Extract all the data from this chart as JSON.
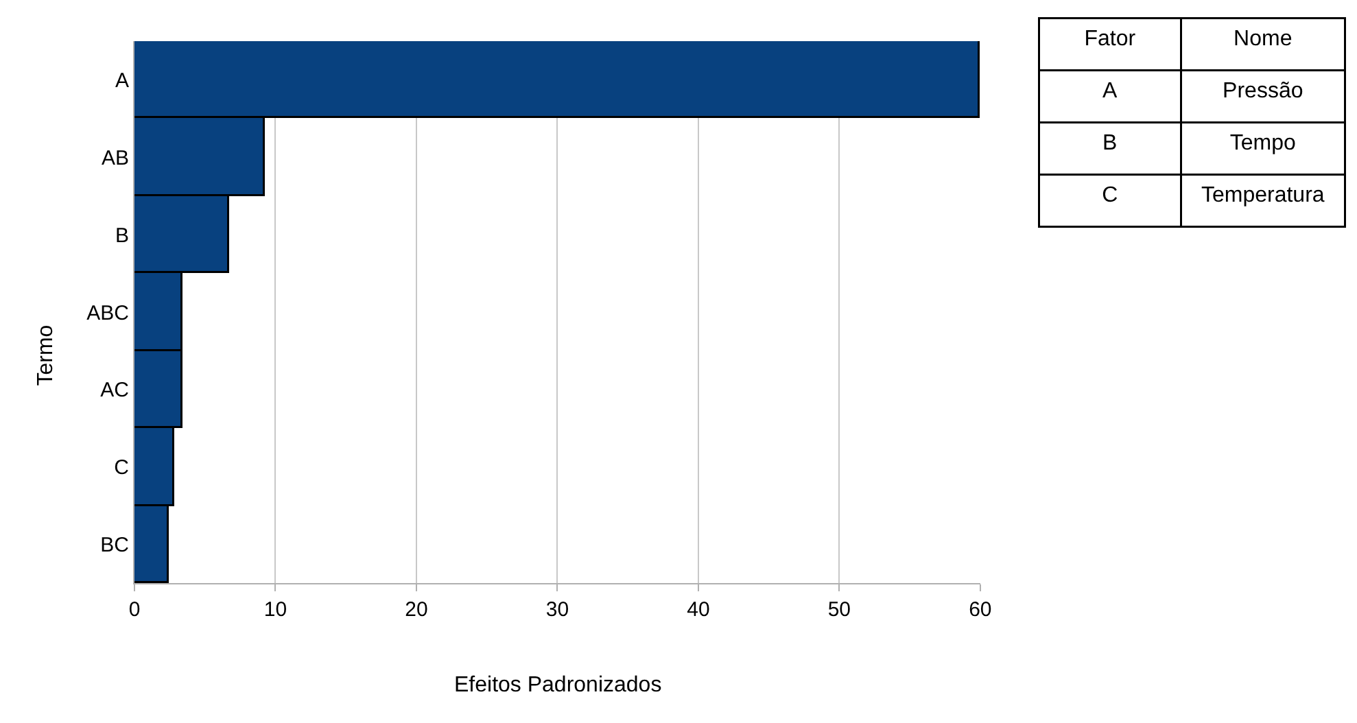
{
  "chart_data": [
    {
      "type": "bar",
      "orientation": "horizontal",
      "categories": [
        "A",
        "AB",
        "B",
        "ABC",
        "AC",
        "C",
        "BC"
      ],
      "values": [
        60,
        9.2,
        6.7,
        3.4,
        3.4,
        2.8,
        2.4
      ],
      "color": "#08417f",
      "xlim": [
        0,
        60
      ],
      "xticks": [
        0,
        10,
        20,
        30,
        40,
        50,
        60
      ],
      "xlabel": "Efeitos Padronizados",
      "ylabel": "Termo",
      "grid": "x"
    },
    {
      "type": "other",
      "categories": [
        "Fator",
        "Nome"
      ],
      "cell_labels": [
        [
          "A",
          "Pressão"
        ],
        [
          "B",
          "Tempo"
        ],
        [
          "C",
          "Temperatura"
        ]
      ]
    }
  ]
}
